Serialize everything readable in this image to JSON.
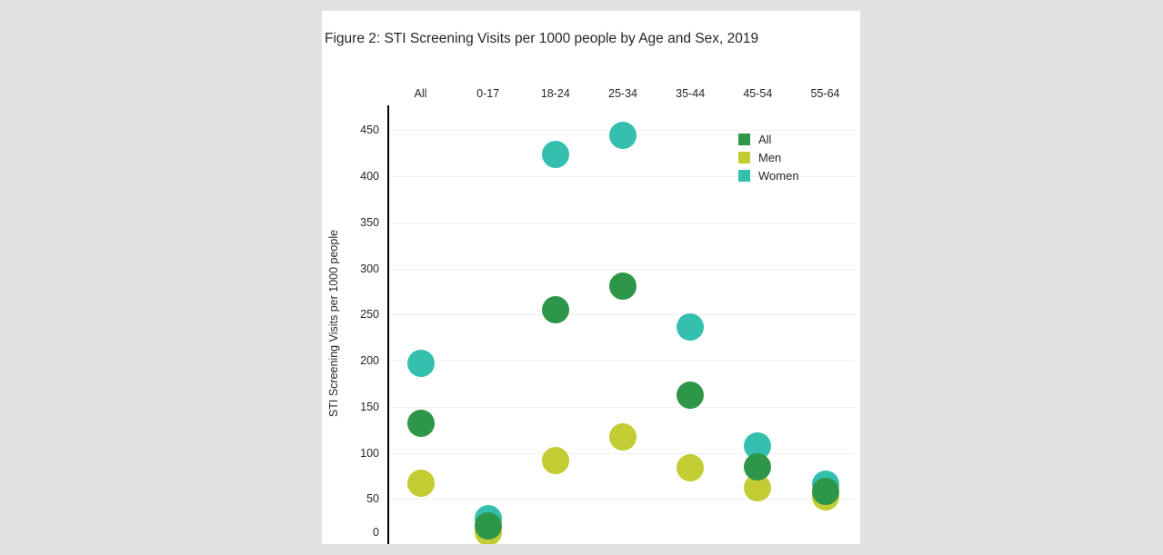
{
  "colors": {
    "page_background": "#e2e2e2",
    "panel_background": "#ffffff",
    "gridline": "#efefef",
    "axis_line": "#000000",
    "text": "#262626"
  },
  "chart_data": {
    "type": "scatter",
    "title": "Figure 2: STI Screening Visits per 1000 people by Age and Sex, 2019",
    "xlabel": "",
    "ylabel": "STI Screening Visits per 1000 people",
    "categories": [
      "All",
      "0-17",
      "18-24",
      "25-34",
      "35-44",
      "45-54",
      "55-64"
    ],
    "x_axis_position": "top",
    "yticks": [
      0,
      50,
      100,
      150,
      200,
      250,
      300,
      350,
      400,
      450
    ],
    "ylim": [
      0,
      475
    ],
    "grid": true,
    "legend_position": "upper-right-inside",
    "marker": "circle",
    "marker_size_px": 30,
    "series": [
      {
        "name": "All",
        "color": "#2e9648",
        "values": [
          132,
          21,
          255,
          281,
          163,
          85,
          58
        ]
      },
      {
        "name": "Men",
        "color": "#c3cc32",
        "values": [
          67,
          14,
          92,
          117,
          84,
          62,
          52
        ]
      },
      {
        "name": "Women",
        "color": "#34bfae",
        "values": [
          197,
          29,
          424,
          444,
          236,
          107,
          66
        ]
      }
    ]
  }
}
